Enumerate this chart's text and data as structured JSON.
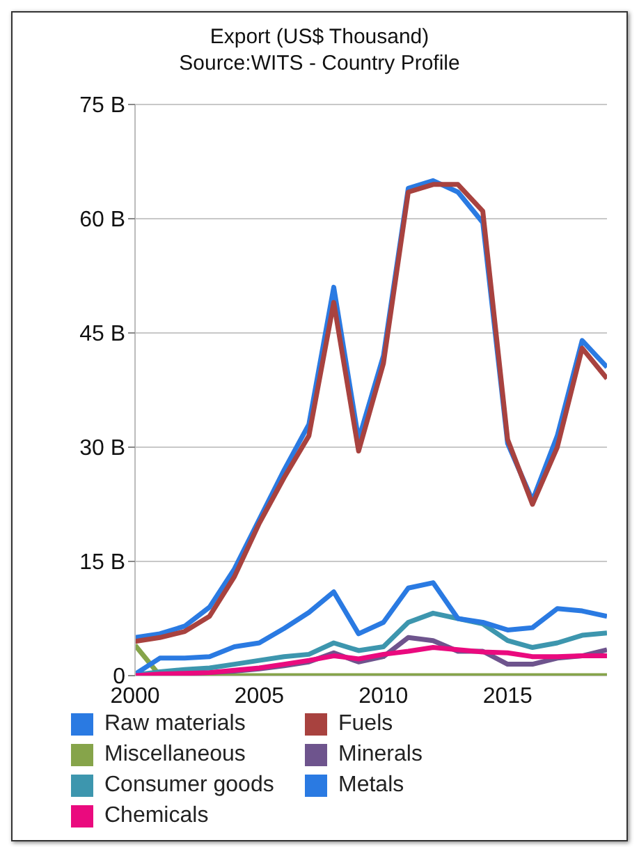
{
  "chart_data": {
    "type": "line",
    "title": "Export (US$ Thousand)",
    "subtitle": "Source:WITS - Country Profile",
    "x": [
      2000,
      2001,
      2002,
      2003,
      2004,
      2005,
      2006,
      2007,
      2008,
      2009,
      2010,
      2011,
      2012,
      2013,
      2014,
      2015,
      2016,
      2017,
      2018,
      2019
    ],
    "xlim": [
      2000,
      2019
    ],
    "xticks": [
      2000,
      2005,
      2010,
      2015
    ],
    "ylim": [
      0,
      75
    ],
    "yticks": [
      0,
      {
        "value": 15,
        "label": "15 B"
      },
      {
        "value": 30,
        "label": "30 B"
      },
      {
        "value": 45,
        "label": "45 B"
      },
      {
        "value": 60,
        "label": "60 B"
      },
      {
        "value": 75,
        "label": "75 B"
      }
    ],
    "grid": "y",
    "legend": "bottom",
    "marker": "none",
    "line_style": "solid",
    "series": [
      {
        "name": "Raw materials",
        "color": "#2a7ae2",
        "values": [
          5,
          5.5,
          6.5,
          9,
          14,
          20.5,
          27,
          33,
          51,
          31,
          42,
          64,
          65,
          63.5,
          59.5,
          30.5,
          23,
          31.5,
          44,
          40.5
        ]
      },
      {
        "name": "Fuels",
        "color": "#a8423f",
        "values": [
          4.5,
          5,
          5.8,
          7.8,
          13,
          20,
          26,
          31.5,
          49,
          29.5,
          41,
          63.5,
          64.5,
          64.5,
          61,
          31,
          22.5,
          30,
          43,
          39
        ]
      },
      {
        "name": "Miscellaneous",
        "color": "#86a44a",
        "values": [
          4,
          0,
          0,
          0,
          0,
          0,
          0,
          0,
          0,
          0,
          0,
          0,
          0,
          0,
          0,
          0,
          0,
          0,
          0,
          0
        ]
      },
      {
        "name": "Minerals",
        "color": "#6e548d",
        "values": [
          0,
          0.2,
          0.3,
          0.4,
          0.6,
          0.9,
          1.3,
          1.8,
          3,
          1.8,
          2.5,
          5,
          4.6,
          3.2,
          3.2,
          1.5,
          1.5,
          2.3,
          2.6,
          3.4
        ]
      },
      {
        "name": "Consumer goods",
        "color": "#3d96ae",
        "values": [
          0.1,
          0.5,
          0.8,
          1,
          1.5,
          2,
          2.5,
          2.8,
          4.3,
          3.3,
          3.8,
          7,
          8.2,
          7.5,
          6.8,
          4.6,
          3.7,
          4.3,
          5.3,
          5.6
        ]
      },
      {
        "name": "Metals",
        "color": "#2a7ae2",
        "values": [
          0.2,
          2.3,
          2.3,
          2.5,
          3.8,
          4.3,
          6.2,
          8.3,
          11,
          5.5,
          7,
          11.5,
          12.2,
          7.5,
          7,
          6,
          6.3,
          8.8,
          8.5,
          7.8
        ]
      },
      {
        "name": "Chemicals",
        "color": "#ea0a7e",
        "values": [
          0,
          0.2,
          0.3,
          0.4,
          0.7,
          1,
          1.5,
          2,
          2.6,
          2.2,
          2.8,
          3.2,
          3.7,
          3.4,
          3.1,
          3,
          2.5,
          2.5,
          2.6,
          2.6
        ]
      }
    ]
  }
}
